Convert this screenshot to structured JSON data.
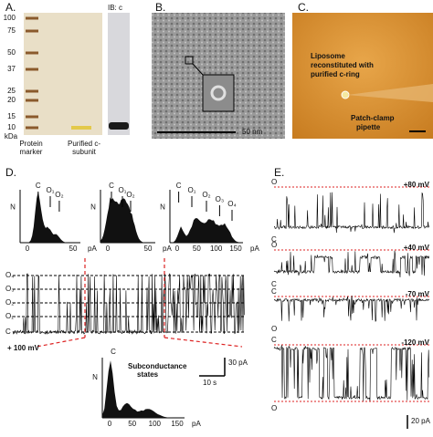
{
  "panel_a": {
    "label": "A.",
    "blot_label": "IB: c",
    "marker_sizes": [
      "100",
      "75",
      "50",
      "37",
      "25",
      "20",
      "15",
      "10"
    ],
    "unit": "kDa",
    "lanes": [
      [
        "Protein",
        "marker"
      ],
      [
        "Purified c-",
        "subunit"
      ]
    ]
  },
  "panel_b": {
    "label": "B.",
    "scale_bar": "50 nm"
  },
  "panel_c": {
    "label": "C.",
    "liposome_text": [
      "Liposome",
      "reconstituted with",
      "purified c-ring"
    ],
    "pipette_text": [
      "Patch-clamp",
      "pipette"
    ]
  },
  "panel_d": {
    "label": "D.",
    "histograms": [
      {
        "y_label": "N",
        "x_label": "pA",
        "ticks": [
          "0",
          "50"
        ],
        "peaks": [
          "C",
          "O₁",
          "O₂"
        ]
      },
      {
        "y_label": "N",
        "x_label": "pA",
        "ticks": [
          "0",
          "50"
        ],
        "peaks": [
          "C",
          "O₁",
          "O₂"
        ]
      },
      {
        "y_label": "N",
        "x_label": "pA",
        "ticks": [
          "0",
          "50",
          "100",
          "150"
        ],
        "peaks": [
          "C",
          "O₁",
          "O₂",
          "O₃",
          "O₄"
        ]
      }
    ],
    "levels": [
      "O₄",
      "O₃",
      "O₂",
      "O₁",
      "C"
    ],
    "voltage": "+ 100 mV",
    "scale_current": "30 pA",
    "scale_time": "10 s",
    "bottom_histogram": {
      "y_label": "N",
      "x_label": "pA",
      "ticks": [
        "0",
        "50",
        "100",
        "150"
      ],
      "peak": "C",
      "annotation": [
        "Subconductance",
        "states"
      ]
    }
  },
  "panel_e": {
    "label": "E.",
    "traces": [
      {
        "voltage": "+80 mV",
        "top": "O",
        "bottom": "C"
      },
      {
        "voltage": "+40 mV",
        "top": "O",
        "bottom": "C"
      },
      {
        "voltage": "-70 mV",
        "top": "C",
        "bottom": "O"
      },
      {
        "voltage": "-120 mV",
        "top": "C",
        "bottom": "O"
      }
    ],
    "scale_current": "20 pA"
  }
}
